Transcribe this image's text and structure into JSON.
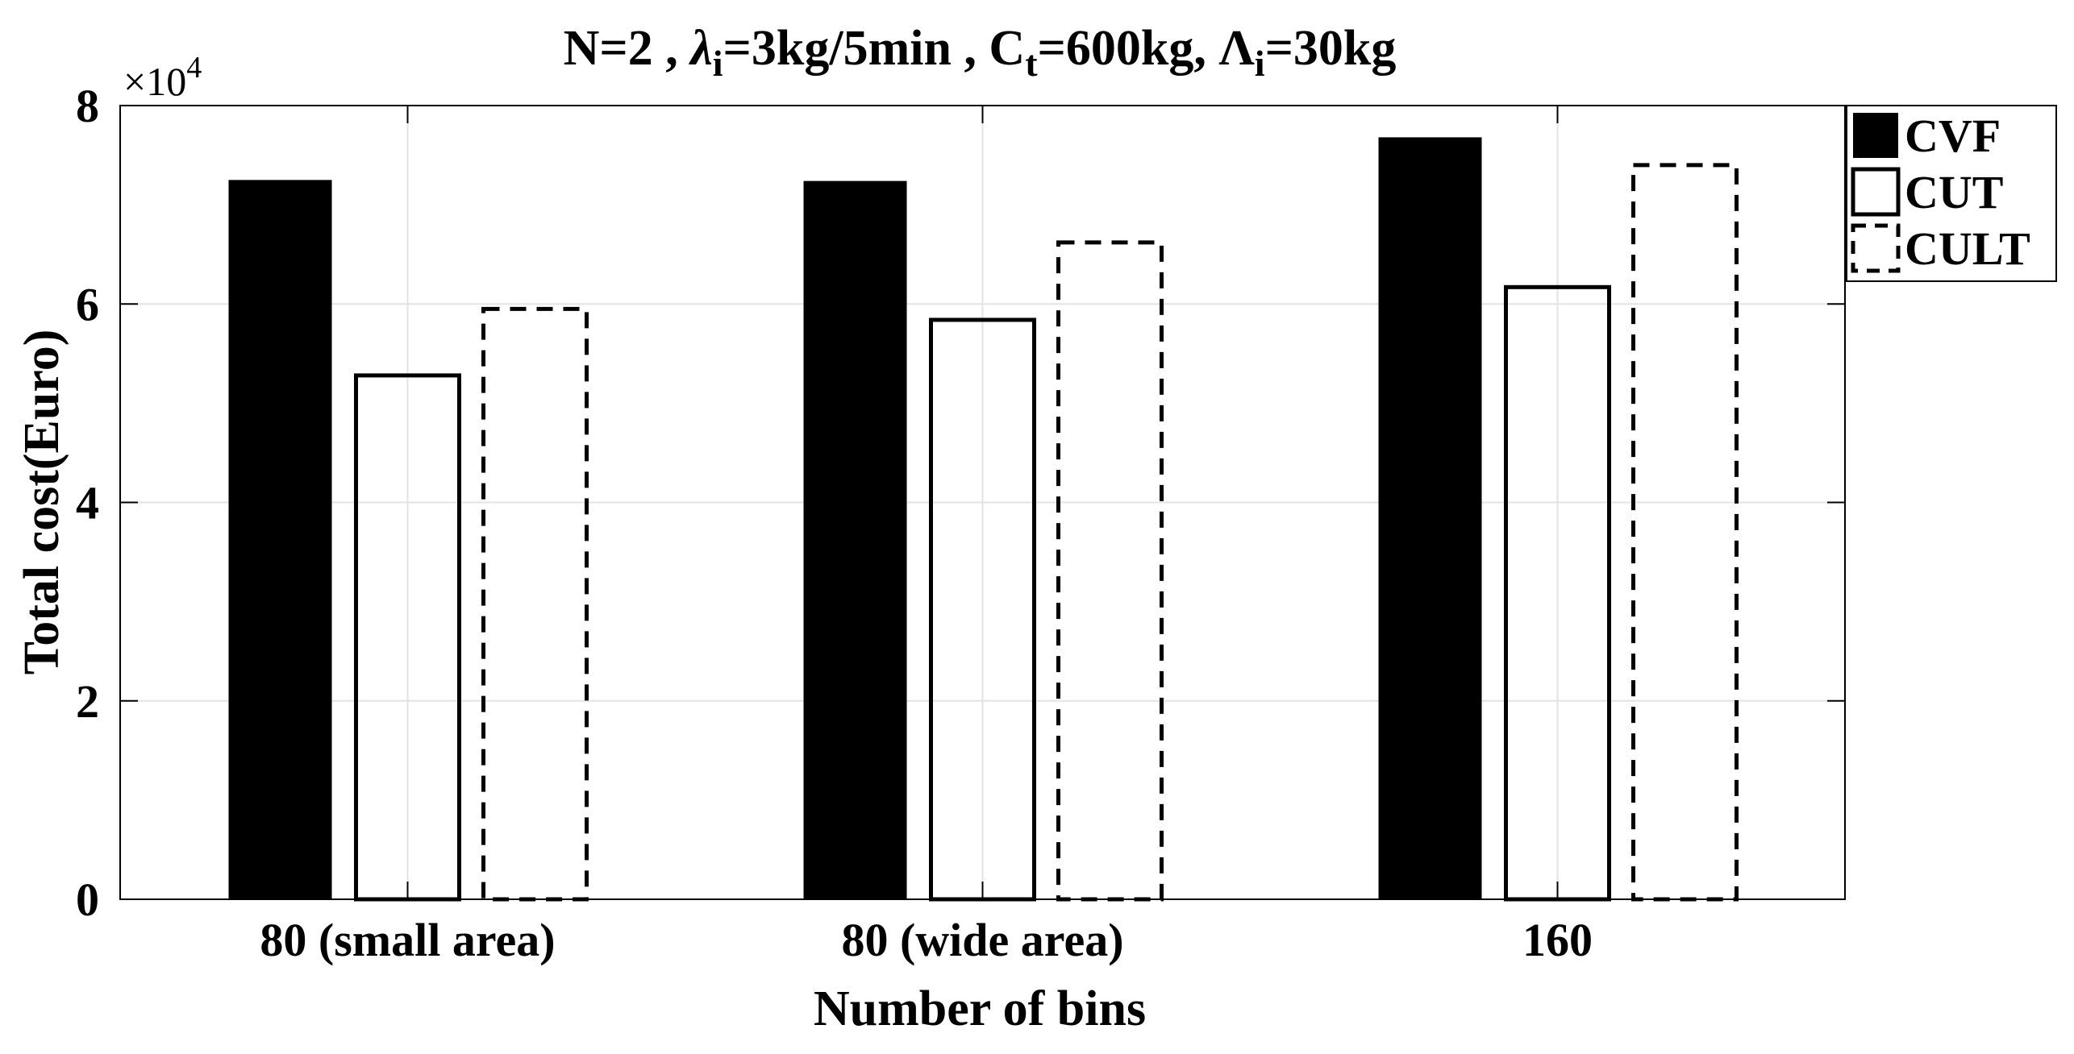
{
  "chart_data": {
    "type": "bar",
    "title": {
      "segments": [
        {
          "text": "N=2 , "
        },
        {
          "text": "λ",
          "style": "italic"
        },
        {
          "text": "i",
          "shift": "sub"
        },
        {
          "text": "=3kg/5min , C"
        },
        {
          "text": "t",
          "shift": "sub"
        },
        {
          "text": "=600kg, Λ"
        },
        {
          "text": "i",
          "shift": "sub"
        },
        {
          "text": "=30kg"
        }
      ]
    },
    "xlabel": "Number of bins",
    "ylabel": "Total cost(Euro)",
    "y_exponent": {
      "base": "×10",
      "power": "4"
    },
    "categories": [
      "80 (small area)",
      "80 (wide area)",
      "160"
    ],
    "y_ticks": [
      0,
      2,
      4,
      6,
      8
    ],
    "ylim": [
      0,
      8
    ],
    "grid": true,
    "legend_position": "outside-top-right",
    "series": [
      {
        "name": "CVF",
        "style": "solid-fill",
        "values": [
          7.25,
          7.24,
          7.68
        ]
      },
      {
        "name": "CUT",
        "style": "outline",
        "values": [
          5.28,
          5.84,
          6.17
        ]
      },
      {
        "name": "CULT",
        "style": "dashed-outline",
        "values": [
          5.95,
          6.62,
          7.4
        ]
      }
    ],
    "colors": {
      "bar": "#000000",
      "grid": "#e3e3e3",
      "background": "#ffffff"
    }
  }
}
